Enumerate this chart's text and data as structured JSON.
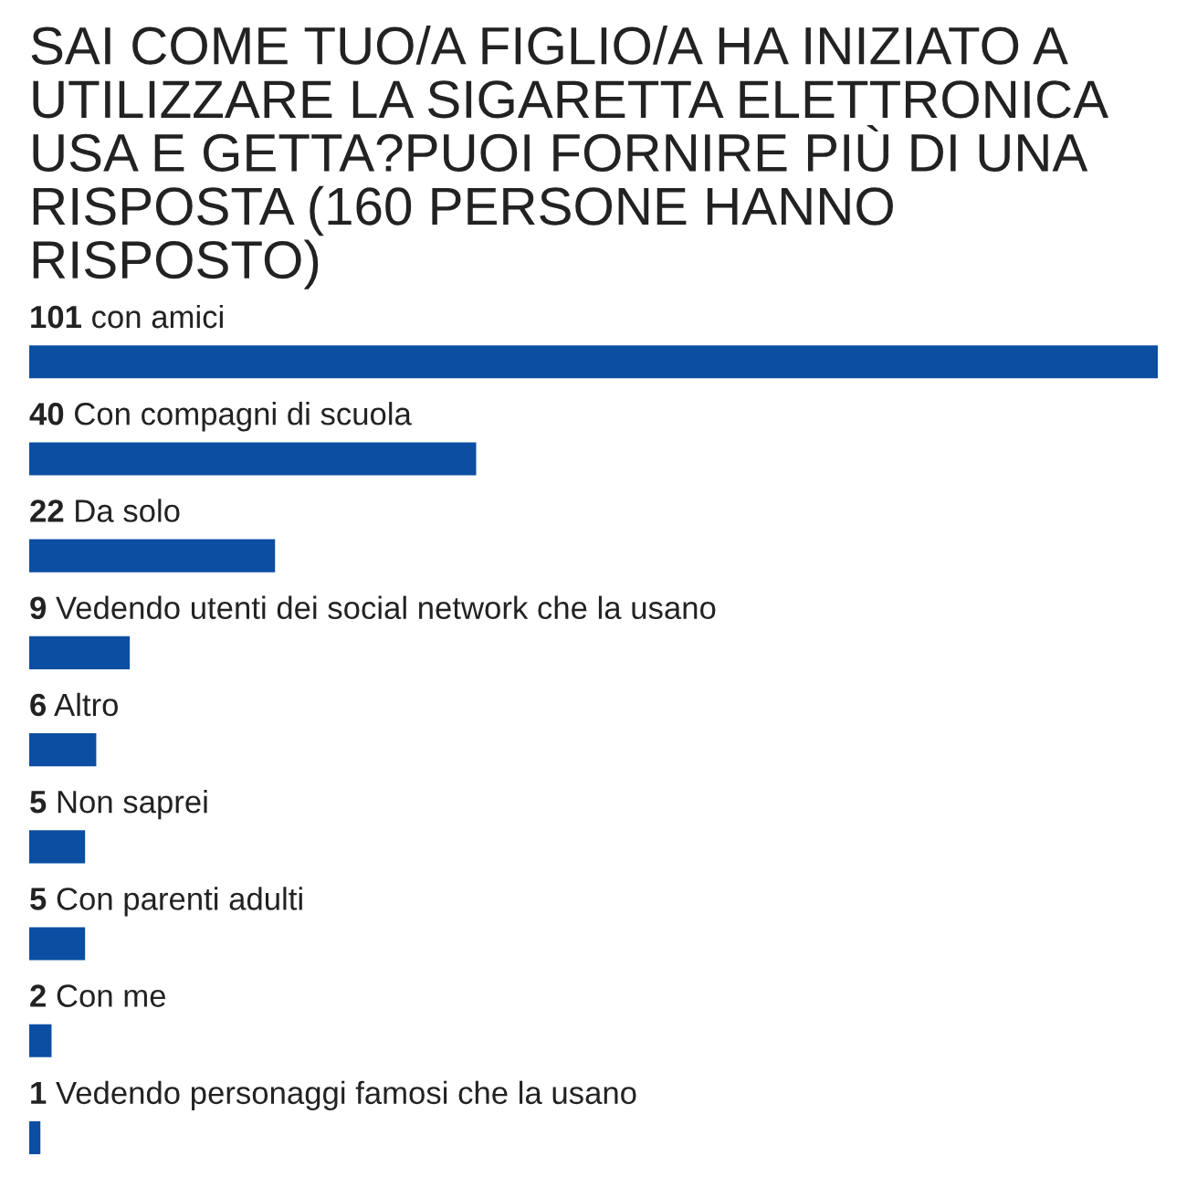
{
  "chart_data": {
    "type": "bar",
    "orientation": "horizontal",
    "title": "SAI COME TUO/A FIGLIO/A HA INIZIATO A UTILIZZARE LA SIGARETTA ELETTRONICA USA E GETTA?PUOI FORNIRE PIÙ DI UNA RISPOSTA (160 PERSONE HANNO RISPOSTO)",
    "categories": [
      "con amici",
      "Con compagni di scuola",
      "Da solo",
      "Vedendo utenti dei social network che la usano",
      "Altro",
      "Non saprei",
      "Con parenti adulti",
      "Con me",
      "Vedendo personaggi famosi che la usano"
    ],
    "values": [
      101,
      40,
      22,
      9,
      6,
      5,
      5,
      2,
      1
    ],
    "color": "#0b4ea2",
    "data_labels": true
  }
}
